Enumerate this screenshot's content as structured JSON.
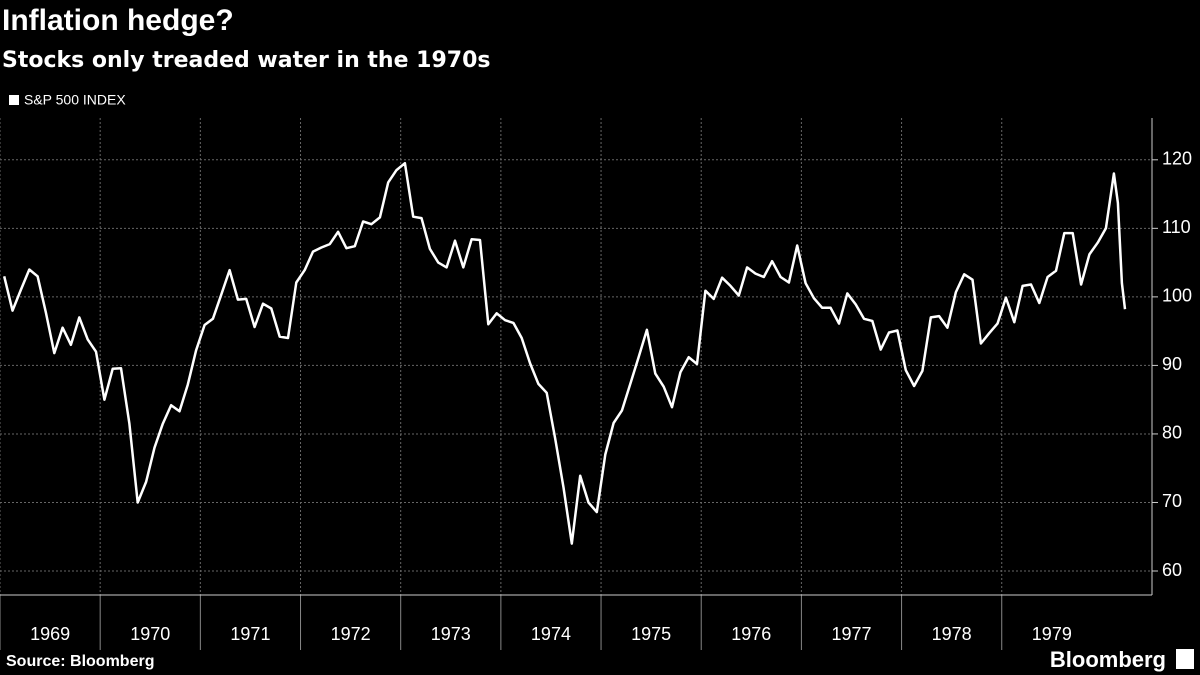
{
  "chart_data": {
    "type": "line",
    "title": "Inflation hedge?",
    "subtitle": "Stocks only treaded water in the 1970s",
    "source": "Source: Bloomberg",
    "brand": "Bloomberg",
    "series": [
      {
        "name": "S&P 500 INDEX",
        "color": "#ffffff",
        "x": [
          1969.042,
          1969.125,
          1969.208,
          1969.292,
          1969.375,
          1969.458,
          1969.542,
          1969.625,
          1969.708,
          1969.792,
          1969.875,
          1969.958,
          1970.042,
          1970.125,
          1970.208,
          1970.292,
          1970.375,
          1970.458,
          1970.542,
          1970.625,
          1970.708,
          1970.792,
          1970.875,
          1970.958,
          1971.042,
          1971.125,
          1971.208,
          1971.292,
          1971.375,
          1971.458,
          1971.542,
          1971.625,
          1971.708,
          1971.792,
          1971.875,
          1971.958,
          1972.042,
          1972.125,
          1972.208,
          1972.292,
          1972.375,
          1972.458,
          1972.542,
          1972.625,
          1972.708,
          1972.792,
          1972.875,
          1972.958,
          1973.042,
          1973.125,
          1973.208,
          1973.292,
          1973.375,
          1973.458,
          1973.542,
          1973.625,
          1973.708,
          1973.792,
          1973.875,
          1973.958,
          1974.042,
          1974.125,
          1974.208,
          1974.292,
          1974.375,
          1974.458,
          1974.542,
          1974.625,
          1974.708,
          1974.792,
          1974.875,
          1974.958,
          1975.042,
          1975.125,
          1975.208,
          1975.292,
          1975.375,
          1975.458,
          1975.542,
          1975.625,
          1975.708,
          1975.792,
          1975.875,
          1975.958,
          1976.042,
          1976.125,
          1976.208,
          1976.292,
          1976.375,
          1976.458,
          1976.542,
          1976.625,
          1976.708,
          1976.792,
          1976.875,
          1976.958,
          1977.042,
          1977.125,
          1977.208,
          1977.292,
          1977.375,
          1977.458,
          1977.542,
          1977.625,
          1977.708,
          1977.792,
          1977.875,
          1977.958,
          1978.042,
          1978.125,
          1978.208,
          1978.292,
          1978.375,
          1978.458,
          1978.542,
          1978.625,
          1978.708,
          1978.792,
          1978.875,
          1978.958,
          1979.042,
          1979.125,
          1979.208,
          1979.292,
          1979.375,
          1979.458,
          1979.542,
          1979.625,
          1979.708,
          1979.792,
          1979.875,
          1979.958,
          1980.04,
          1980.08,
          1980.12,
          1980.16,
          1980.2,
          1980.23
        ],
        "values": [
          103,
          98,
          101,
          104,
          103,
          97.7,
          91.8,
          95.5,
          93,
          97,
          93.8,
          92,
          85,
          89.5,
          89.6,
          81.5,
          70,
          73,
          78,
          81.5,
          84.2,
          83.3,
          87.2,
          92.2,
          95.9,
          96.8,
          100.3,
          103.9,
          99.6,
          99.7,
          95.6,
          99,
          98.3,
          94.2,
          94,
          102.1,
          103.9,
          106.6,
          107.2,
          107.7,
          109.5,
          107.1,
          107.4,
          111,
          110.6,
          111.6,
          116.7,
          118.5,
          119.5,
          111.7,
          111.5,
          107,
          105,
          104.3,
          108.2,
          104.3,
          108.4,
          108.3,
          96,
          97.6,
          96.6,
          96.2,
          94,
          90.3,
          87.3,
          86,
          79.3,
          72.2,
          64,
          73.9,
          70,
          68.6,
          77,
          81.6,
          83.4,
          87.3,
          91.2,
          95.2,
          88.8,
          86.9,
          83.9,
          89,
          91.2,
          90.2,
          100.9,
          99.7,
          102.8,
          101.6,
          100.2,
          104.3,
          103.4,
          102.9,
          105.2,
          102.9,
          102.1,
          107.5,
          102,
          99.8,
          98.4,
          98.4,
          96.1,
          100.5,
          98.9,
          96.8,
          96.5,
          92.3,
          94.8,
          95.1,
          89.3,
          87,
          89.2,
          97,
          97.2,
          95.5,
          100.7,
          103.3,
          102.5,
          93.2,
          94.7,
          96.1,
          99.9,
          96.3,
          101.6,
          101.8,
          99.1,
          102.9,
          103.8,
          109.3,
          109.3,
          101.8,
          106.2,
          107.9,
          110,
          114,
          118,
          113.7,
          102,
          98.2
        ]
      }
    ],
    "xlim": [
      1969,
      1980.5
    ],
    "xticks": [
      1969,
      1970,
      1971,
      1972,
      1973,
      1974,
      1975,
      1976,
      1977,
      1978,
      1979
    ],
    "ylim": [
      56.5,
      126.1
    ],
    "yticks": [
      60,
      70,
      80,
      90,
      100,
      110,
      120
    ],
    "grid": true
  }
}
